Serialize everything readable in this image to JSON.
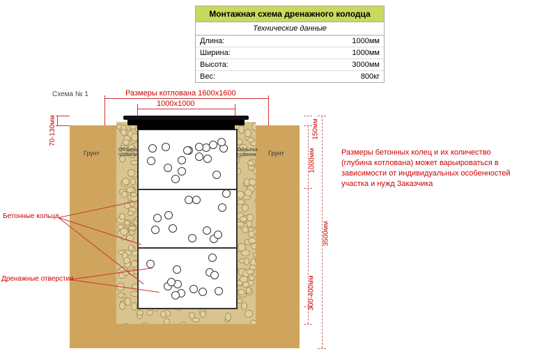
{
  "header": {
    "title": "Монтажная схема дренажного колодца",
    "title_bg": "#c9d95e",
    "subtitle": "Технические данные",
    "rows": [
      {
        "k": "Длина:",
        "v": "1000мм"
      },
      {
        "k": "Ширина:",
        "v": "1000мм"
      },
      {
        "k": "Высота:",
        "v": "3000мм"
      },
      {
        "k": "Вес:",
        "v": "800кг"
      }
    ]
  },
  "schema_label": "Схема № 1",
  "top_dims": {
    "pit_label": "Размеры  котлована  1600х1600",
    "width_label": "1000х1000"
  },
  "left_dim": "70-130мм",
  "right_dims": {
    "small_top": "150мм",
    "ring": "1000мм",
    "total": "3500мм",
    "bottom": "300-400мм"
  },
  "earth": {
    "color": "#cfa55e",
    "label": "Грунт"
  },
  "gravel": {
    "label_a": "Обсыпка",
    "label_b": "гравием"
  },
  "callouts": {
    "rings": "Бетонные кольца",
    "holes": "Дренажные отверстия"
  },
  "side_note": "Размеры бетонных колец и их количество (глубина котлована) может варьироваться в зависимости от индивидуальных особенностей участка и нужд Заказчика",
  "colors": {
    "dim": "#c00",
    "dim_line": "#c33",
    "gravel_bg": "#d9c38e",
    "pebble_fill": "#e0cf9f",
    "pebble_stroke": "#a8925f"
  }
}
